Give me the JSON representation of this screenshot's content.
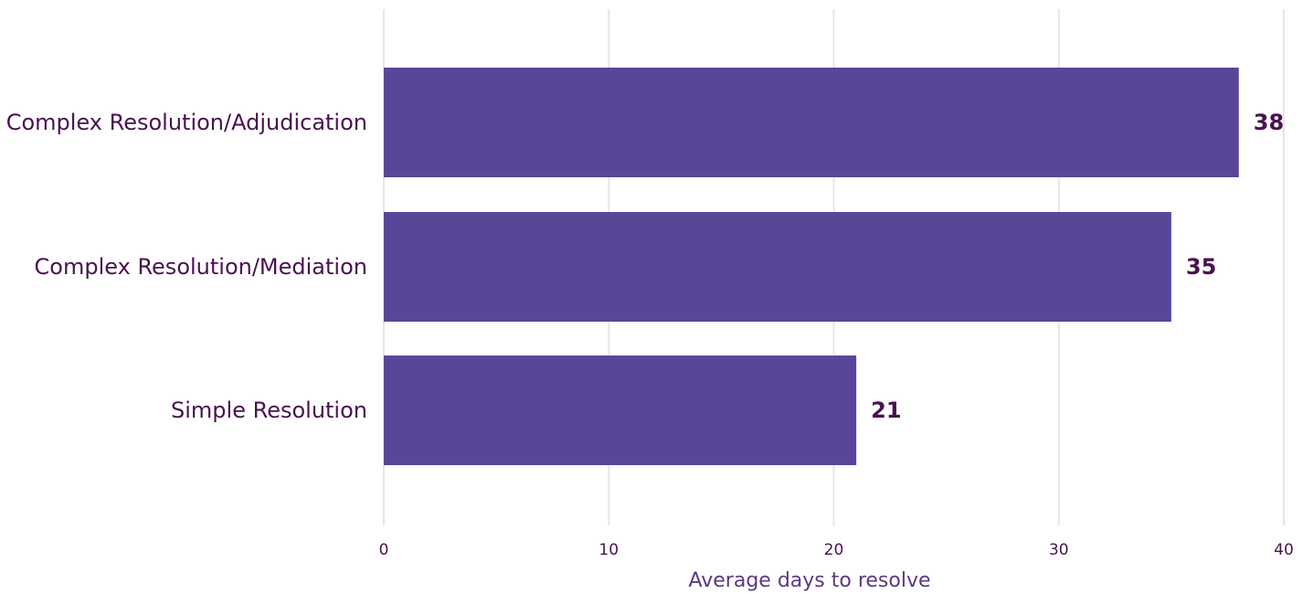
{
  "chart_data": {
    "type": "bar",
    "orientation": "horizontal",
    "categories": [
      "Complex Resolution/Adjudication",
      "Complex Resolution/Mediation",
      "Simple Resolution"
    ],
    "values": [
      38,
      35,
      21
    ],
    "value_labels": [
      "38",
      "35",
      "21"
    ],
    "xlabel": "Average days to resolve",
    "ylabel": "",
    "xlim": [
      0,
      40
    ],
    "ticks": [
      0,
      10,
      20,
      30,
      40
    ],
    "tick_labels": [
      "0",
      "10",
      "20",
      "30",
      "40"
    ],
    "grid": "vertical",
    "legend": "none",
    "bar_color": "#5a4699",
    "label_color": "#4a1250"
  }
}
